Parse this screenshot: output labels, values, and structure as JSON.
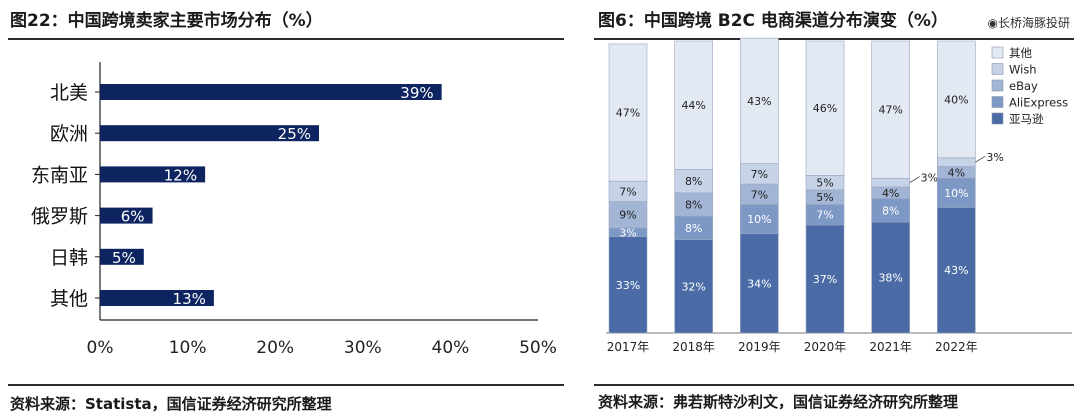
{
  "left_panel": {
    "title": "图22：中国跨境卖家主要市场分布（%）",
    "source": "资料来源：Statista，国信证券经济研究所整理"
  },
  "right_panel": {
    "title": "图6：中国跨境 B2C 电商渠道分布演变（%）",
    "watermark": "长桥海豚投研",
    "source": "资料来源：弗若斯特沙利文，国信证券经济研究所整理"
  },
  "chart_data": [
    {
      "type": "bar",
      "orientation": "horizontal",
      "title": "图22：中国跨境卖家主要市场分布（%）",
      "categories": [
        "北美",
        "欧洲",
        "东南亚",
        "俄罗斯",
        "日韩",
        "其他"
      ],
      "values": [
        39,
        25,
        12,
        6,
        5,
        13
      ],
      "value_labels": [
        "39%",
        "25%",
        "12%",
        "6%",
        "5%",
        "13%"
      ],
      "xlim": [
        0,
        50
      ],
      "xticks": [
        "0%",
        "10%",
        "20%",
        "30%",
        "40%",
        "50%"
      ],
      "bar_color": "#0d2461",
      "grid": false,
      "legend": "none"
    },
    {
      "type": "bar",
      "stacked": true,
      "title": "图6：中国跨境 B2C 电商渠道分布演变（%）",
      "categories": [
        "2017年",
        "2018年",
        "2019年",
        "2020年",
        "2021年",
        "2022年"
      ],
      "series": [
        {
          "name": "亚马逊",
          "color": "#4a6ba5",
          "values": [
            33,
            32,
            34,
            37,
            38,
            43
          ],
          "labels": [
            "33%",
            "32%",
            "34%",
            "37%",
            "38%",
            "43%"
          ]
        },
        {
          "name": "AliExpress",
          "color": "#7e98c6",
          "values": [
            3,
            8,
            10,
            7,
            8,
            10
          ],
          "labels": [
            "3%",
            "8%",
            "10%",
            "7%",
            "8%",
            "10%"
          ]
        },
        {
          "name": "eBay",
          "color": "#a3b5d5",
          "values": [
            9,
            8,
            7,
            5,
            4,
            4
          ],
          "labels": [
            "9%",
            "8%",
            "7%",
            "5%",
            "4%",
            "4%"
          ]
        },
        {
          "name": "Wish",
          "color": "#c6d2e6",
          "values": [
            7,
            8,
            7,
            5,
            3,
            3
          ],
          "labels": [
            "7%",
            "8%",
            "7%",
            "5%",
            "3%",
            "3%"
          ]
        },
        {
          "name": "其他",
          "color": "#e3e9f3",
          "values": [
            47,
            44,
            43,
            46,
            47,
            40
          ],
          "labels": [
            "47%",
            "44%",
            "43%",
            "46%",
            "47%",
            "40%"
          ]
        }
      ],
      "ylim": [
        0,
        100
      ],
      "grid": false,
      "legend": "top-right"
    }
  ]
}
